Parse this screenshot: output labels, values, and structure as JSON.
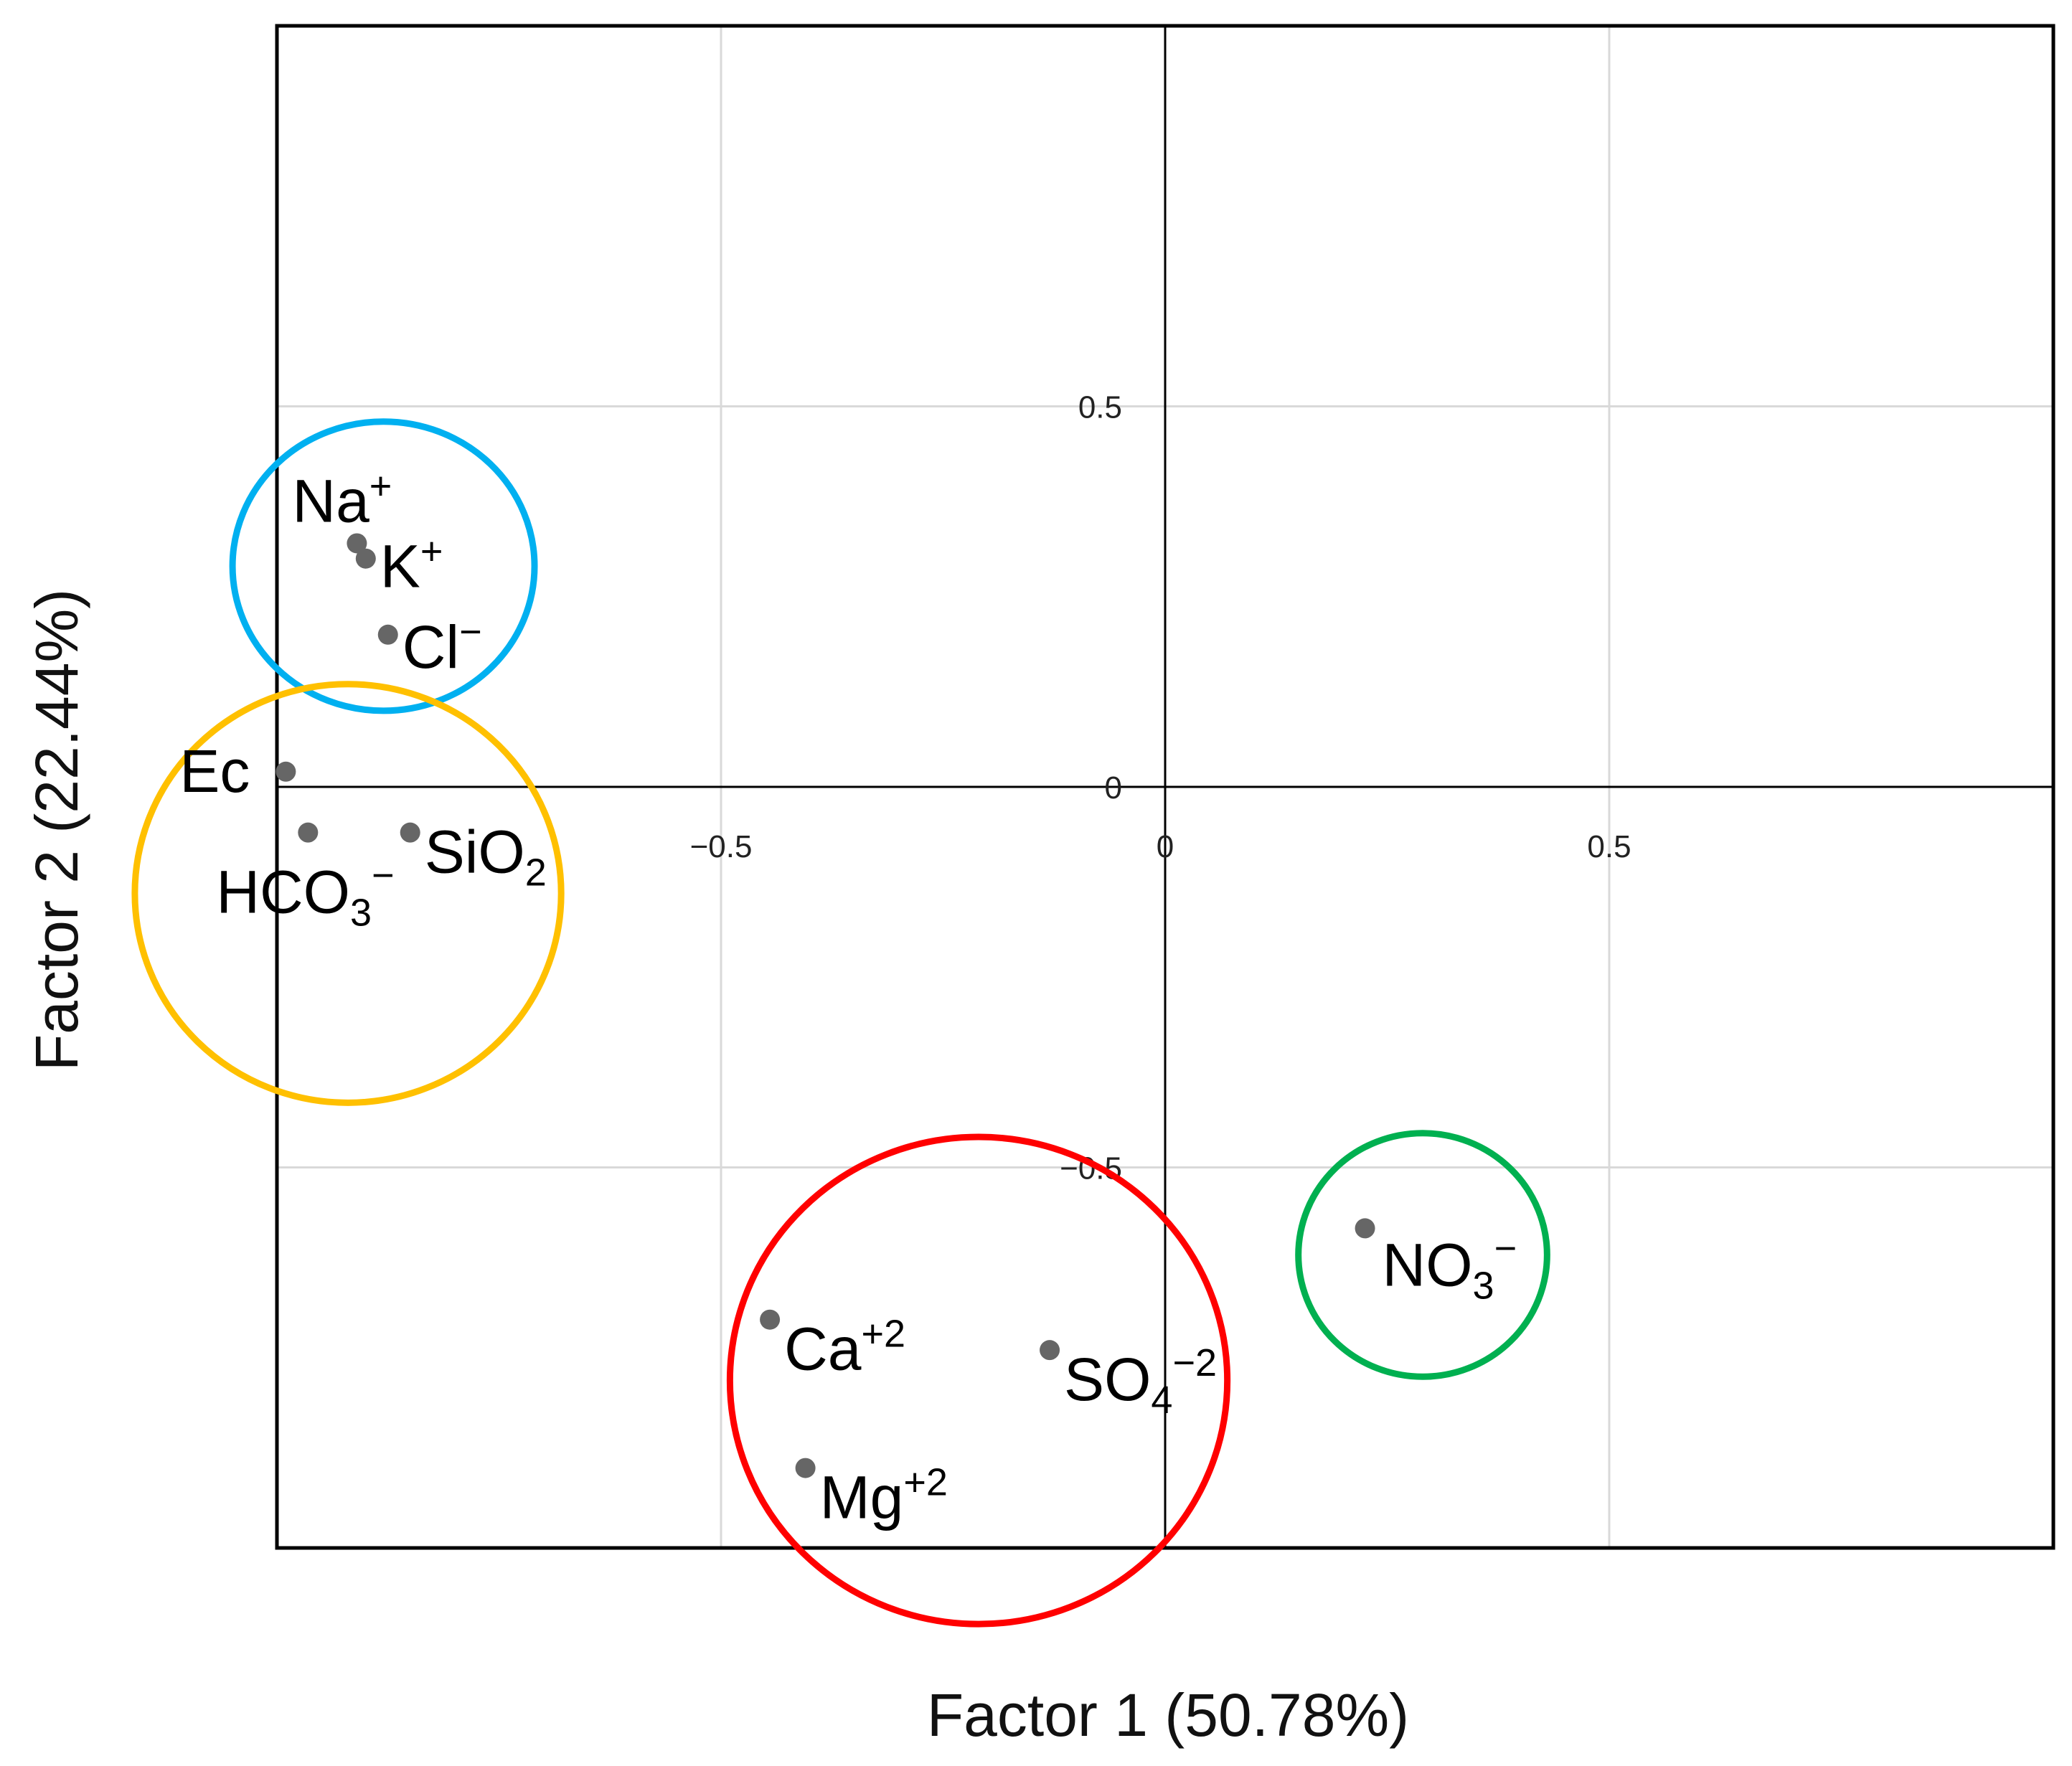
{
  "chart_data": {
    "type": "scatter",
    "xlabel": "Factor 1 (50.78%)",
    "ylabel": "Factor 2 (22.44%)",
    "xlim": [
      -1.0,
      1.0
    ],
    "ylim": [
      -1.0,
      1.0
    ],
    "grid": true,
    "x_ticks": [
      -0.5,
      0,
      0.5
    ],
    "x_tick_labels": [
      "−0.5",
      "0",
      "0.5"
    ],
    "y_ticks": [
      0.5,
      0,
      -0.5
    ],
    "y_tick_labels": [
      "0.5",
      "0",
      "−0.5"
    ],
    "marker_color": "#666666",
    "points": [
      {
        "id": "na",
        "base": "Na",
        "sup": "+",
        "sub": "",
        "x": -0.91,
        "y": 0.32
      },
      {
        "id": "k",
        "base": "K",
        "sup": "+",
        "sub": "",
        "x": -0.9,
        "y": 0.3
      },
      {
        "id": "cl",
        "base": "Cl",
        "sup": "−",
        "sub": "",
        "x": -0.875,
        "y": 0.2
      },
      {
        "id": "ec",
        "base": "Ec",
        "sup": "",
        "sub": "",
        "x": -0.99,
        "y": 0.02
      },
      {
        "id": "hco3",
        "base": "HCO",
        "sup": "−",
        "sub": "3",
        "x": -0.965,
        "y": -0.06
      },
      {
        "id": "sio2",
        "base": "SiO",
        "sup": "",
        "sub": "2",
        "x": -0.85,
        "y": -0.06
      },
      {
        "id": "ca",
        "base": "Ca",
        "sup": "+2",
        "sub": "",
        "x": -0.445,
        "y": -0.7
      },
      {
        "id": "so4",
        "base": "SO",
        "sup": "−2",
        "sub": "4",
        "x": -0.13,
        "y": -0.74
      },
      {
        "id": "mg",
        "base": "Mg",
        "sup": "+2",
        "sub": "",
        "x": -0.405,
        "y": -0.895
      },
      {
        "id": "no3",
        "base": "NO",
        "sup": "−",
        "sub": "3",
        "x": 0.225,
        "y": -0.58
      }
    ],
    "clusters": [
      {
        "id": "cl-blue",
        "color": "#00b0f0",
        "members": [
          "Na+",
          "K+",
          "Cl−"
        ],
        "cx": -0.88,
        "cy": 0.29,
        "rx": 0.17,
        "ry": 0.19
      },
      {
        "id": "cl-orange",
        "color": "#ffc000",
        "members": [
          "Ec",
          "HCO3−",
          "SiO2"
        ],
        "cx": -0.92,
        "cy": -0.14,
        "rx": 0.24,
        "ry": 0.275
      },
      {
        "id": "cl-red",
        "color": "#ff0000",
        "members": [
          "Ca+2",
          "Mg+2",
          "SO4−2"
        ],
        "cx": -0.21,
        "cy": -0.78,
        "rx": 0.28,
        "ry": 0.32
      },
      {
        "id": "cl-green",
        "color": "#00b050",
        "members": [
          "NO3−"
        ],
        "cx": 0.29,
        "cy": -0.615,
        "rx": 0.14,
        "ry": 0.16
      }
    ]
  }
}
